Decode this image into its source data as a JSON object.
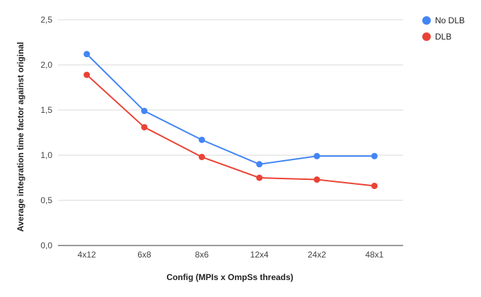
{
  "chart_data": {
    "type": "line",
    "title": "",
    "xlabel": "Config (MPIs x OmpSs threads)",
    "ylabel": "Average integration time factor against original",
    "categories": [
      "4x12",
      "6x8",
      "8x6",
      "12x4",
      "24x2",
      "48x1"
    ],
    "ylim": [
      0,
      2.5
    ],
    "yticks": [
      "0,0",
      "0,5",
      "1,0",
      "1,5",
      "2,0",
      "2,5"
    ],
    "grid": true,
    "legend_position": "top-right",
    "series": [
      {
        "name": "No DLB",
        "color": "#4285f4",
        "values": [
          2.12,
          1.49,
          1.17,
          0.9,
          0.99,
          0.99
        ]
      },
      {
        "name": "DLB",
        "color": "#ea4335",
        "values": [
          1.89,
          1.31,
          0.98,
          0.75,
          0.73,
          0.66
        ]
      }
    ]
  }
}
